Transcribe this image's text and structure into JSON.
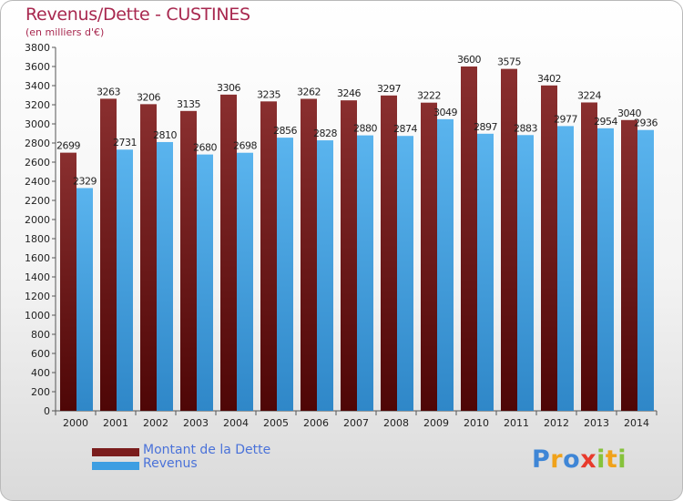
{
  "header": {
    "title": "Revenus/Dette - CUSTINES",
    "subtitle": "(en milliers d'€)"
  },
  "legend": {
    "items": [
      {
        "label": "Montant de la Dette",
        "color": "#7a1c1c"
      },
      {
        "label": "Revenus",
        "color": "#3d9ee2"
      }
    ]
  },
  "logo": {
    "letters": [
      {
        "ch": "P",
        "color": "#3f86d6"
      },
      {
        "ch": "r",
        "color": "#f0a21a"
      },
      {
        "ch": "o",
        "color": "#3f86d6"
      },
      {
        "ch": "x",
        "color": "#e83a2c"
      },
      {
        "ch": "i",
        "color": "#86c23b"
      },
      {
        "ch": "t",
        "color": "#f0a21a"
      },
      {
        "ch": "i",
        "color": "#86c23b"
      }
    ]
  },
  "chart_data": {
    "type": "bar",
    "title": "Revenus/Dette - CUSTINES",
    "subtitle": "(en milliers d'€)",
    "categories": [
      "2000",
      "2001",
      "2002",
      "2003",
      "2004",
      "2005",
      "2006",
      "2007",
      "2008",
      "2009",
      "2010",
      "2011",
      "2012",
      "2013",
      "2014"
    ],
    "series": [
      {
        "name": "Montant de la Dette",
        "color": "#7a1c1c",
        "values": [
          2699,
          3263,
          3206,
          3135,
          3306,
          3235,
          3262,
          3246,
          3297,
          3222,
          3600,
          3575,
          3402,
          3224,
          3040
        ]
      },
      {
        "name": "Revenus",
        "color": "#3d9ee2",
        "values": [
          2329,
          2731,
          2810,
          2680,
          2698,
          2856,
          2828,
          2880,
          2874,
          3049,
          2897,
          2883,
          2977,
          2954,
          2936
        ]
      }
    ],
    "ylim": [
      0,
      3800
    ],
    "ytick_step": 200,
    "grid": false,
    "legend_position": "bottom-left"
  }
}
